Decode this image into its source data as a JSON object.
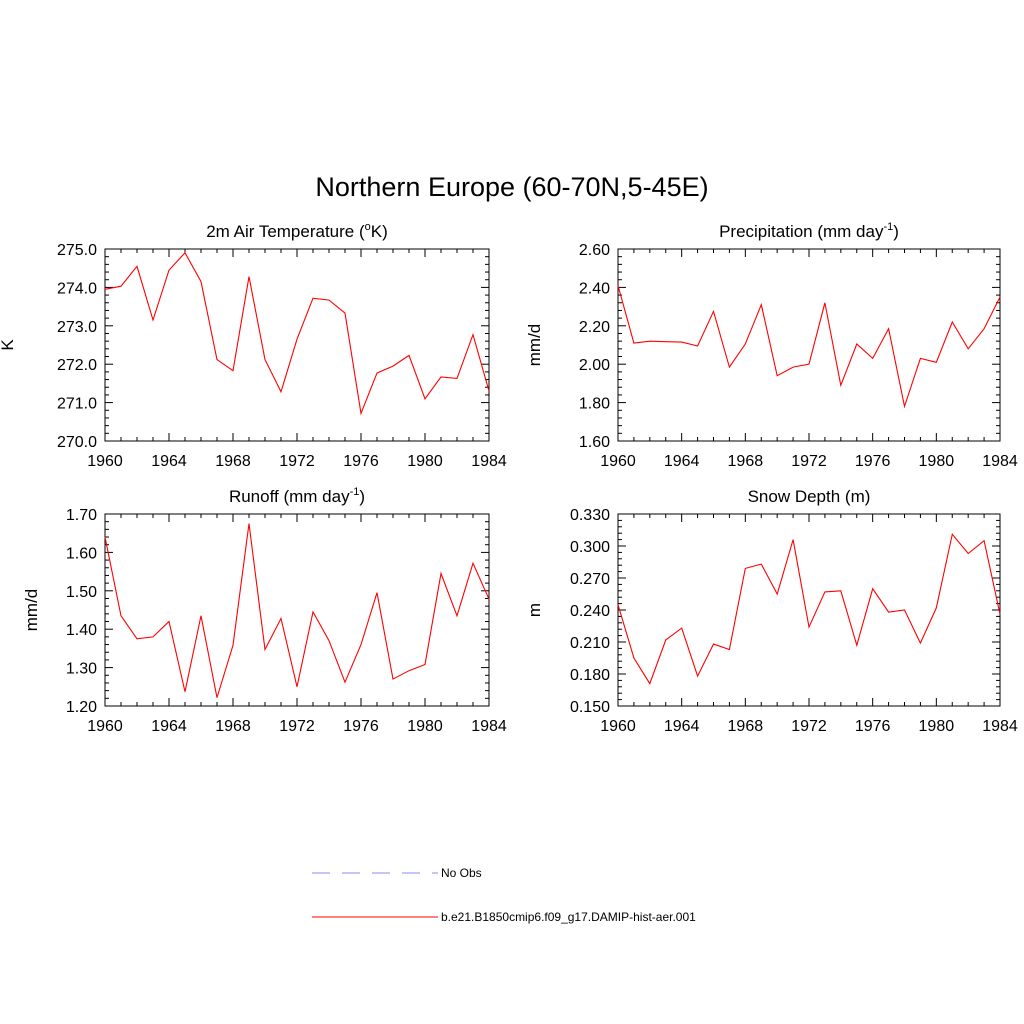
{
  "figure": {
    "title": "Northern Europe (60-70N,5-45E)"
  },
  "legend": [
    {
      "label": "No Obs",
      "color": "#a0a0f0",
      "dash": "dashed"
    },
    {
      "label": "b.e21.B1850cmip6.f09_g17.DAMIP-hist-aer.001",
      "color": "#ff0000",
      "dash": "solid"
    }
  ],
  "chart_data": [
    {
      "type": "line",
      "title": "2m Air Temperature (",
      "title_sup": "o",
      "title_suffix": "K)",
      "ylabel": "K",
      "xlim": [
        1960,
        1984
      ],
      "ylim": [
        270.0,
        275.0
      ],
      "xticks": [
        "1960",
        "1964",
        "1968",
        "1972",
        "1976",
        "1980",
        "1984"
      ],
      "yticks": [
        "270.0",
        "271.0",
        "272.0",
        "273.0",
        "274.0",
        "275.0"
      ],
      "color": "#ff0000",
      "x": [
        1960,
        1961,
        1962,
        1963,
        1964,
        1965,
        1966,
        1967,
        1968,
        1969,
        1970,
        1971,
        1972,
        1973,
        1974,
        1975,
        1976,
        1977,
        1978,
        1979,
        1980,
        1981,
        1982,
        1983,
        1984
      ],
      "values": [
        273.95,
        274.03,
        274.55,
        273.15,
        274.45,
        274.9,
        274.15,
        272.12,
        271.83,
        274.28,
        272.12,
        271.28,
        272.65,
        273.72,
        273.67,
        273.33,
        270.72,
        271.77,
        271.95,
        272.23,
        271.1,
        271.67,
        271.63,
        272.77,
        271.3
      ]
    },
    {
      "type": "line",
      "title": "Precipitation (mm day",
      "title_sup": "-1",
      "title_suffix": ")",
      "ylabel": "mm/d",
      "xlim": [
        1960,
        1984
      ],
      "ylim": [
        1.6,
        2.6
      ],
      "xticks": [
        "1960",
        "1964",
        "1968",
        "1972",
        "1976",
        "1980",
        "1984"
      ],
      "yticks": [
        "1.60",
        "1.80",
        "2.00",
        "2.20",
        "2.40",
        "2.60"
      ],
      "color": "#ff0000",
      "x": [
        1960,
        1961,
        1962,
        1963,
        1964,
        1965,
        1966,
        1967,
        1968,
        1969,
        1970,
        1971,
        1972,
        1973,
        1974,
        1975,
        1976,
        1977,
        1978,
        1979,
        1980,
        1981,
        1982,
        1983,
        1984
      ],
      "values": [
        2.41,
        2.11,
        2.12,
        2.117,
        2.115,
        2.095,
        2.275,
        1.985,
        2.105,
        2.31,
        1.94,
        1.985,
        2.0,
        2.32,
        1.89,
        2.105,
        2.03,
        2.185,
        1.78,
        2.03,
        2.01,
        2.22,
        2.08,
        2.185,
        2.35
      ]
    },
    {
      "type": "line",
      "title": "Runoff (mm day",
      "title_sup": "-1",
      "title_suffix": ")",
      "ylabel": "mm/d",
      "xlim": [
        1960,
        1984
      ],
      "ylim": [
        1.2,
        1.7
      ],
      "xticks": [
        "1960",
        "1964",
        "1968",
        "1972",
        "1976",
        "1980",
        "1984"
      ],
      "yticks": [
        "1.20",
        "1.30",
        "1.40",
        "1.50",
        "1.60",
        "1.70"
      ],
      "color": "#ff0000",
      "x": [
        1960,
        1961,
        1962,
        1963,
        1964,
        1965,
        1966,
        1967,
        1968,
        1969,
        1970,
        1971,
        1972,
        1973,
        1974,
        1975,
        1976,
        1977,
        1978,
        1979,
        1980,
        1981,
        1982,
        1983,
        1984
      ],
      "values": [
        1.64,
        1.435,
        1.375,
        1.38,
        1.42,
        1.237,
        1.435,
        1.222,
        1.358,
        1.675,
        1.347,
        1.428,
        1.25,
        1.445,
        1.37,
        1.262,
        1.36,
        1.495,
        1.27,
        1.292,
        1.308,
        1.545,
        1.435,
        1.572,
        1.478
      ]
    },
    {
      "type": "line",
      "title": "Snow Depth (m)",
      "title_sup": "",
      "title_suffix": "",
      "ylabel": "m",
      "xlim": [
        1960,
        1984
      ],
      "ylim": [
        0.15,
        0.33
      ],
      "xticks": [
        "1960",
        "1964",
        "1968",
        "1972",
        "1976",
        "1980",
        "1984"
      ],
      "yticks": [
        "0.150",
        "0.180",
        "0.210",
        "0.240",
        "0.270",
        "0.300",
        "0.330"
      ],
      "color": "#ff0000",
      "x": [
        1960,
        1961,
        1962,
        1963,
        1964,
        1965,
        1966,
        1967,
        1968,
        1969,
        1970,
        1971,
        1972,
        1973,
        1974,
        1975,
        1976,
        1977,
        1978,
        1979,
        1980,
        1981,
        1982,
        1983,
        1984
      ],
      "values": [
        0.245,
        0.195,
        0.171,
        0.212,
        0.223,
        0.178,
        0.208,
        0.203,
        0.279,
        0.283,
        0.255,
        0.306,
        0.224,
        0.257,
        0.258,
        0.207,
        0.26,
        0.238,
        0.24,
        0.209,
        0.242,
        0.311,
        0.293,
        0.305,
        0.236
      ]
    }
  ]
}
